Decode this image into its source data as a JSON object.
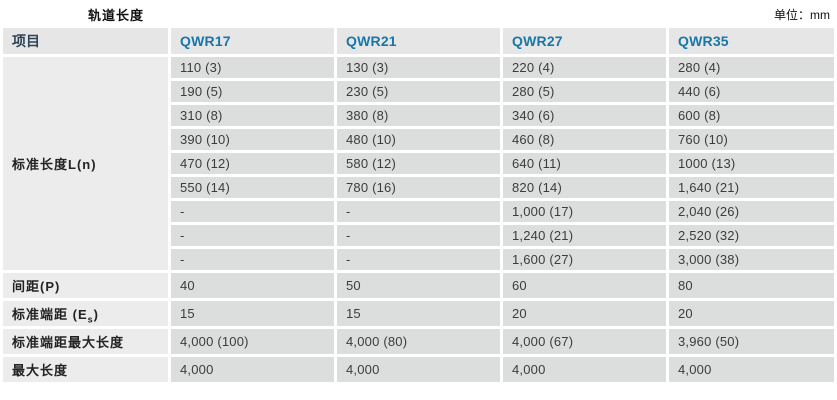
{
  "header": {
    "title": "轨道长度",
    "unit": "单位：mm"
  },
  "colors": {
    "header_bg": "#e6e6e6",
    "label_bg": "#ececec",
    "cell_bg": "#dcdddd",
    "model_header": "#1777a8",
    "item_header": "#2e4456"
  },
  "table": {
    "columns": [
      "项目",
      "QWR17",
      "QWR21",
      "QWR27",
      "QWR35"
    ],
    "groups": [
      {
        "label": "标准长度L(n)",
        "rows": [
          [
            "110 (3)",
            "130 (3)",
            "220 (4)",
            "280 (4)"
          ],
          [
            "190 (5)",
            "230 (5)",
            "280 (5)",
            "440 (6)"
          ],
          [
            "310 (8)",
            "380 (8)",
            "340 (6)",
            "600 (8)"
          ],
          [
            "390 (10)",
            "480 (10)",
            "460 (8)",
            "760 (10)"
          ],
          [
            "470 (12)",
            "580 (12)",
            "640 (11)",
            "1000 (13)"
          ],
          [
            "550 (14)",
            "780 (16)",
            "820 (14)",
            "1,640 (21)"
          ],
          [
            "-",
            "-",
            "1,000 (17)",
            "2,040 (26)"
          ],
          [
            "-",
            "-",
            "1,240 (21)",
            "2,520 (32)"
          ],
          [
            "-",
            "-",
            "1,600 (27)",
            "3,000 (38)"
          ]
        ]
      }
    ],
    "simple_rows": [
      {
        "label": "间距(P)",
        "values": [
          "40",
          "50",
          "60",
          "80"
        ]
      },
      {
        "label_parts": [
          {
            "t": "标准端距 (E"
          },
          {
            "t": "s",
            "sub": true
          },
          {
            "t": ")"
          }
        ],
        "values": [
          "15",
          "15",
          "20",
          "20"
        ]
      },
      {
        "label": "标准端距最大长度",
        "values": [
          "4,000 (100)",
          "4,000 (80)",
          "4,000 (67)",
          "3,960 (50)"
        ]
      },
      {
        "label": "最大长度",
        "values": [
          "4,000",
          "4,000",
          "4,000",
          "4,000"
        ]
      }
    ]
  }
}
